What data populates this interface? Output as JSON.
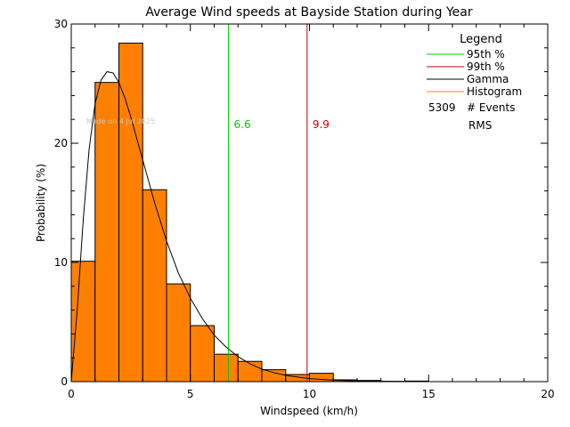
{
  "chart_data": {
    "type": "bar",
    "title": "Average Wind speeds at Bayside Station during Year",
    "xlabel": "Windspeed (km/h)",
    "ylabel": "Probability   (%)",
    "xlim": [
      0,
      20
    ],
    "ylim": [
      0,
      30
    ],
    "xticks": [
      0,
      5,
      10,
      15,
      20
    ],
    "xtick_labels": [
      "0",
      "5",
      "10",
      "15",
      "20"
    ],
    "yticks": [
      0,
      10,
      20,
      30
    ],
    "ytick_labels": [
      "0",
      "10",
      "20",
      "30"
    ],
    "bin_width": 1,
    "histogram": [
      {
        "x0": 0,
        "x1": 1,
        "value": 10.1
      },
      {
        "x0": 1,
        "x1": 2,
        "value": 25.1
      },
      {
        "x0": 2,
        "x1": 3,
        "value": 28.4
      },
      {
        "x0": 3,
        "x1": 4,
        "value": 16.1
      },
      {
        "x0": 4,
        "x1": 5,
        "value": 8.2
      },
      {
        "x0": 5,
        "x1": 6,
        "value": 4.7
      },
      {
        "x0": 6,
        "x1": 7,
        "value": 2.3
      },
      {
        "x0": 7,
        "x1": 8,
        "value": 1.7
      },
      {
        "x0": 8,
        "x1": 9,
        "value": 1.0
      },
      {
        "x0": 9,
        "x1": 10,
        "value": 0.6
      },
      {
        "x0": 10,
        "x1": 11,
        "value": 0.7
      },
      {
        "x0": 11,
        "x1": 12,
        "value": 0.15
      },
      {
        "x0": 12,
        "x1": 13,
        "value": 0.1
      },
      {
        "x0": 13,
        "x1": 14,
        "value": 0.02
      },
      {
        "x0": 14,
        "x1": 15,
        "value": 0.05
      }
    ],
    "gamma_curve": {
      "x": [
        0,
        0.25,
        0.5,
        0.75,
        1.0,
        1.25,
        1.5,
        1.75,
        2.0,
        2.25,
        2.5,
        2.75,
        3.0,
        3.5,
        4.0,
        4.5,
        5.0,
        5.5,
        6.0,
        6.5,
        7.0,
        7.5,
        8.0,
        8.5,
        9.0,
        10.0,
        11.0,
        12.0,
        13.0,
        14.0
      ],
      "y": [
        0,
        6.0,
        13.5,
        19.5,
        23.3,
        25.3,
        26.0,
        25.9,
        25.1,
        23.8,
        22.2,
        20.4,
        18.6,
        15.0,
        11.8,
        9.1,
        7.0,
        5.3,
        3.9,
        2.9,
        2.1,
        1.5,
        1.05,
        0.75,
        0.52,
        0.25,
        0.12,
        0.06,
        0.03,
        0.01
      ]
    },
    "percentile_lines": [
      {
        "name": "95th %",
        "x": 6.6,
        "label": "6.6",
        "color": "#00cc00"
      },
      {
        "name": "99th %",
        "x": 9.9,
        "label": "9.9",
        "color": "#cc0000"
      }
    ],
    "legend": {
      "title": "Legend",
      "entries": [
        {
          "label": "95th %",
          "color": "#00cc00"
        },
        {
          "label": "99th %",
          "color": "#cc0000"
        },
        {
          "label": "Gamma",
          "color": "#000000"
        },
        {
          "label": "Histogram",
          "color": "#ff8000"
        }
      ],
      "events_count": "5309",
      "events_label": "# Events",
      "rms_label": "RMS",
      "placement": "top-right"
    },
    "watermark": "Made on 4 Jul 2025",
    "colors": {
      "histogram_fill": "#ff8000",
      "histogram_edge": "#000000",
      "gamma": "#000000",
      "axes": "#000000"
    }
  }
}
